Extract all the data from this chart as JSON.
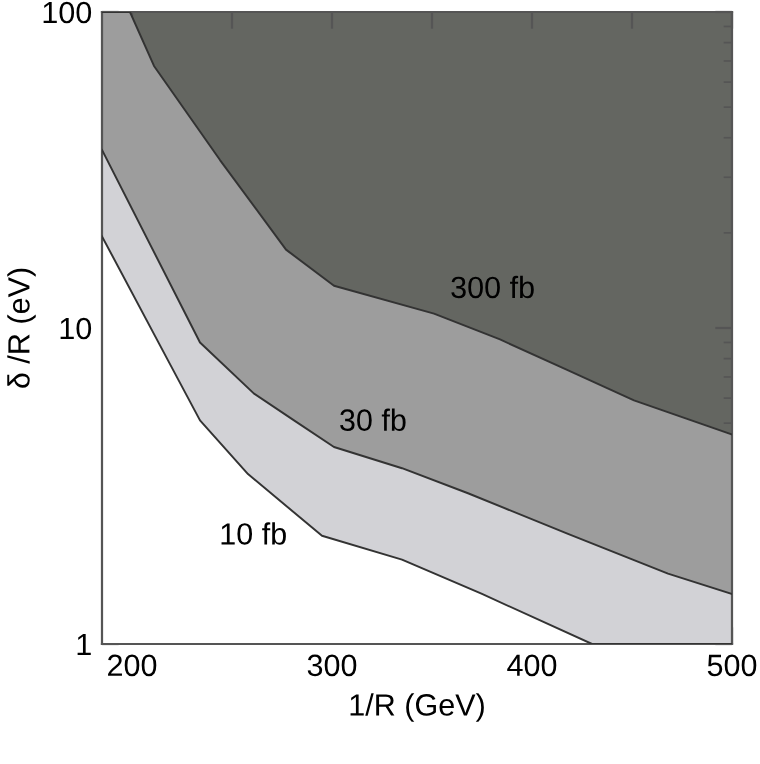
{
  "chart_data": {
    "type": "area",
    "xlabel": "1/R (GeV)",
    "ylabel": "δ /R (eV)",
    "xlim": [
      185,
      500
    ],
    "ylim": [
      1,
      100
    ],
    "log": "y",
    "xticks": [
      200,
      {
        "value": 250,
        "label": null
      },
      300,
      {
        "value": 350,
        "label": null
      },
      400,
      {
        "value": 450,
        "label": null
      },
      500
    ],
    "yticks": [
      1,
      10,
      100
    ],
    "grid": false,
    "legend": false,
    "series": [
      {
        "name": "10 fb",
        "color": "#ffffff",
        "x": [
          185,
          218,
          234,
          258,
          295,
          335,
          375,
          430,
          500
        ],
        "values": [
          19.5,
          7.9,
          5.1,
          3.45,
          2.2,
          1.85,
          1.44,
          1.0,
          1.0
        ]
      },
      {
        "name": "30 fb",
        "color": "#d2d2d6",
        "x": [
          185,
          234,
          261,
          281,
          301,
          335,
          368,
          418,
          468,
          500
        ],
        "values": [
          36.6,
          9.0,
          6.2,
          5.1,
          4.2,
          3.6,
          3.0,
          2.23,
          1.67,
          1.44
        ]
      },
      {
        "name": "300 fb",
        "color": "#9d9d9d",
        "x": [
          185,
          199,
          211,
          244,
          277,
          301,
          351,
          384,
          417,
          451,
          500
        ],
        "values": [
          100,
          100,
          67.5,
          34,
          17.7,
          13.6,
          11.1,
          9.2,
          7.4,
          5.9,
          4.6
        ]
      }
    ]
  }
}
